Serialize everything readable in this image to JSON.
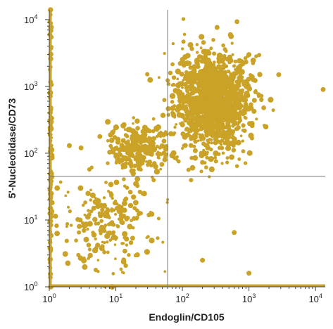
{
  "chart_data": {
    "type": "scatter",
    "xlabel": "Endoglin/CD105",
    "ylabel": "5'-Nucleotidase/CD73",
    "x_scale": "log",
    "y_scale": "log",
    "xlim": [
      1,
      14000
    ],
    "ylim": [
      1,
      14000
    ],
    "x_ticks": [
      {
        "value": 1,
        "base": "10",
        "exp": "0"
      },
      {
        "value": 10,
        "base": "10",
        "exp": "1"
      },
      {
        "value": 100,
        "base": "10",
        "exp": "2"
      },
      {
        "value": 1000,
        "base": "10",
        "exp": "3"
      },
      {
        "value": 10000,
        "base": "10",
        "exp": "4"
      }
    ],
    "y_ticks": [
      {
        "value": 1,
        "base": "10",
        "exp": "0"
      },
      {
        "value": 10,
        "base": "10",
        "exp": "1"
      },
      {
        "value": 100,
        "base": "10",
        "exp": "2"
      },
      {
        "value": 1000,
        "base": "10",
        "exp": "3"
      },
      {
        "value": 10000,
        "base": "10",
        "exp": "4"
      }
    ],
    "quadrant_gates": {
      "x": 60,
      "y": 45
    },
    "grid": false,
    "point_color": "#c9a227",
    "populations": [
      {
        "name": "double-positive",
        "x_center": 280,
        "y_center": 600,
        "x_sigma_decades": 0.28,
        "y_sigma_decades": 0.35,
        "count": 1400
      },
      {
        "name": "CD73-only",
        "x_center": 22,
        "y_center": 110,
        "x_sigma_decades": 0.22,
        "y_sigma_decades": 0.2,
        "count": 260
      },
      {
        "name": "low-diagonal",
        "x_center": 8,
        "y_center": 9,
        "x_sigma_decades": 0.35,
        "y_sigma_decades": 0.35,
        "count": 220
      },
      {
        "name": "y-axis-pileup",
        "x_center": 1.05,
        "y_center": 80,
        "x_sigma_decades": 0.01,
        "y_sigma_decades": 1.1,
        "count": 120
      }
    ],
    "outliers": [
      {
        "x": 600,
        "y": 6.5
      },
      {
        "x": 200,
        "y": 2.5
      },
      {
        "x": 1000,
        "y": 1.6
      },
      {
        "x": 1000,
        "y": 3000
      },
      {
        "x": 2800,
        "y": 1500
      },
      {
        "x": 13000,
        "y": 900
      },
      {
        "x": 3,
        "y": 120
      },
      {
        "x": 2,
        "y": 130
      }
    ]
  }
}
